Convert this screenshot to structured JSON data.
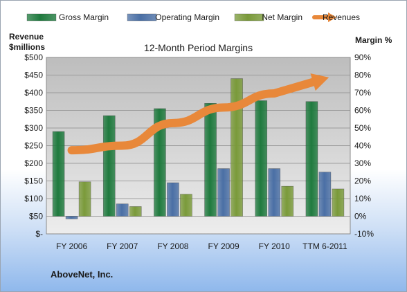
{
  "company": "AboveNet, Inc.",
  "chart_data": {
    "type": "bar",
    "title": "12-Month Period Margins",
    "ylabel_left": [
      "Revenue",
      "$millions"
    ],
    "ylabel_right": "Margin %",
    "categories": [
      "FY 2006",
      "FY 2007",
      "FY 2008",
      "FY 2009",
      "FY 2010",
      "TTM 6-2011"
    ],
    "left_axis": {
      "min": 0,
      "max": 500,
      "step": 50,
      "tick_labels": [
        "$-",
        "$50",
        "$100",
        "$150",
        "$200",
        "$250",
        "$300",
        "$350",
        "$400",
        "$450",
        "$500"
      ]
    },
    "right_axis": {
      "min": -10,
      "max": 90,
      "step": 10,
      "tick_labels": [
        "-10%",
        "0%",
        "10%",
        "20%",
        "30%",
        "40%",
        "50%",
        "60%",
        "70%",
        "80%",
        "90%"
      ]
    },
    "series": [
      {
        "name": "Gross Margin",
        "axis": "right",
        "color": "#1f7a3e",
        "values": [
          48,
          57,
          61,
          64,
          65.5,
          65
        ]
      },
      {
        "name": "Operating Margin",
        "axis": "right",
        "color": "#4a6fa5",
        "values": [
          -1.5,
          7,
          19,
          27,
          27,
          25
        ]
      },
      {
        "name": "Net Margin",
        "axis": "right",
        "color": "#7a9a3a",
        "values": [
          19.5,
          5.5,
          12.5,
          78,
          17,
          15.5
        ]
      },
      {
        "name": "Revenues",
        "type": "line",
        "axis": "left",
        "color": "#e8883a",
        "values": [
          237,
          250,
          314,
          358,
          398,
          440
        ]
      }
    ],
    "legend": {
      "position": "top"
    },
    "grid": true
  }
}
